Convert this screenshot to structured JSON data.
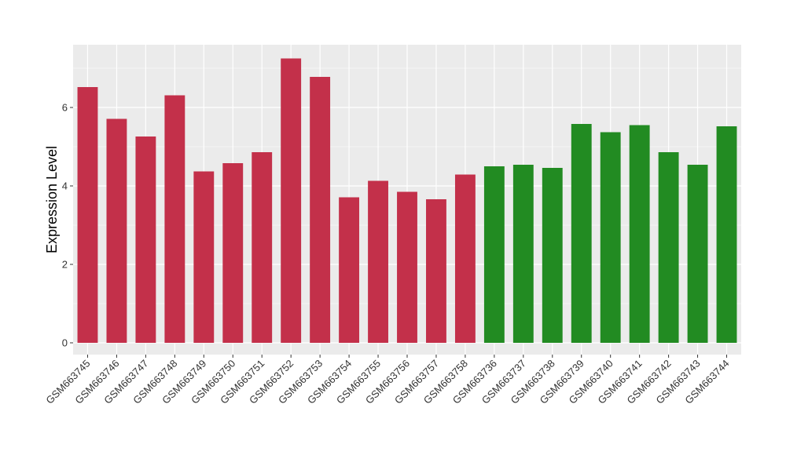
{
  "chart_data": {
    "type": "bar",
    "title": "",
    "xlabel": "",
    "ylabel": "Expression Level",
    "ylim": [
      -0.3,
      7.6
    ],
    "yticks": [
      0,
      2,
      4,
      6
    ],
    "grid": true,
    "legend": "none",
    "categories": [
      "GSM663745",
      "GSM663746",
      "GSM663747",
      "GSM663748",
      "GSM663749",
      "GSM663750",
      "GSM663751",
      "GSM663752",
      "GSM663753",
      "GSM663754",
      "GSM663755",
      "GSM663756",
      "GSM663757",
      "GSM663758",
      "GSM663736",
      "GSM663737",
      "GSM663738",
      "GSM663739",
      "GSM663740",
      "GSM663741",
      "GSM663742",
      "GSM663743",
      "GSM663744"
    ],
    "values": [
      6.52,
      5.71,
      5.26,
      6.31,
      4.37,
      4.58,
      4.86,
      7.25,
      6.78,
      3.71,
      4.13,
      3.85,
      3.66,
      4.29,
      4.5,
      4.54,
      4.46,
      5.58,
      5.37,
      5.55,
      4.86,
      4.54,
      5.52
    ],
    "colors": [
      "#c3304a",
      "#c3304a",
      "#c3304a",
      "#c3304a",
      "#c3304a",
      "#c3304a",
      "#c3304a",
      "#c3304a",
      "#c3304a",
      "#c3304a",
      "#c3304a",
      "#c3304a",
      "#c3304a",
      "#c3304a",
      "#228b22",
      "#228b22",
      "#228b22",
      "#228b22",
      "#228b22",
      "#228b22",
      "#228b22",
      "#228b22",
      "#228b22"
    ],
    "panel_color": "#ebebeb",
    "grid_color": "#ffffff"
  }
}
